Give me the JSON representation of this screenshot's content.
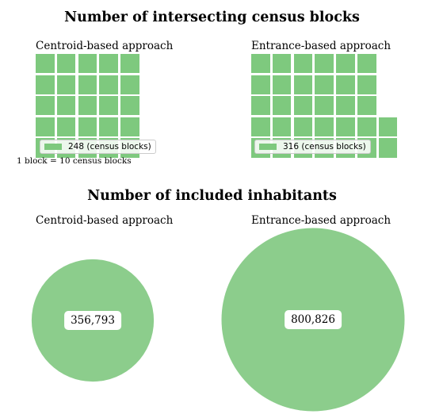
{
  "chart_data": [
    {
      "type": "waffle",
      "title": "Number of intersecting census blocks",
      "unit_note": "1 block = 10 census blocks",
      "color": "#7ec97e",
      "panels": [
        {
          "subtitle": "Centroid-based approach",
          "value": 248,
          "legend": "248 (census blocks)",
          "blocks": 25
        },
        {
          "subtitle": "Entrance-based approach",
          "value": 316,
          "legend": "316 (census blocks)",
          "blocks": 32
        }
      ]
    },
    {
      "type": "bubble",
      "title": "Number of included inhabitants",
      "color": "#8ccd8c",
      "panels": [
        {
          "subtitle": "Centroid-based approach",
          "value": 356793,
          "label": "356,793"
        },
        {
          "subtitle": "Entrance-based approach",
          "value": 800826,
          "label": "800,826"
        }
      ]
    }
  ]
}
